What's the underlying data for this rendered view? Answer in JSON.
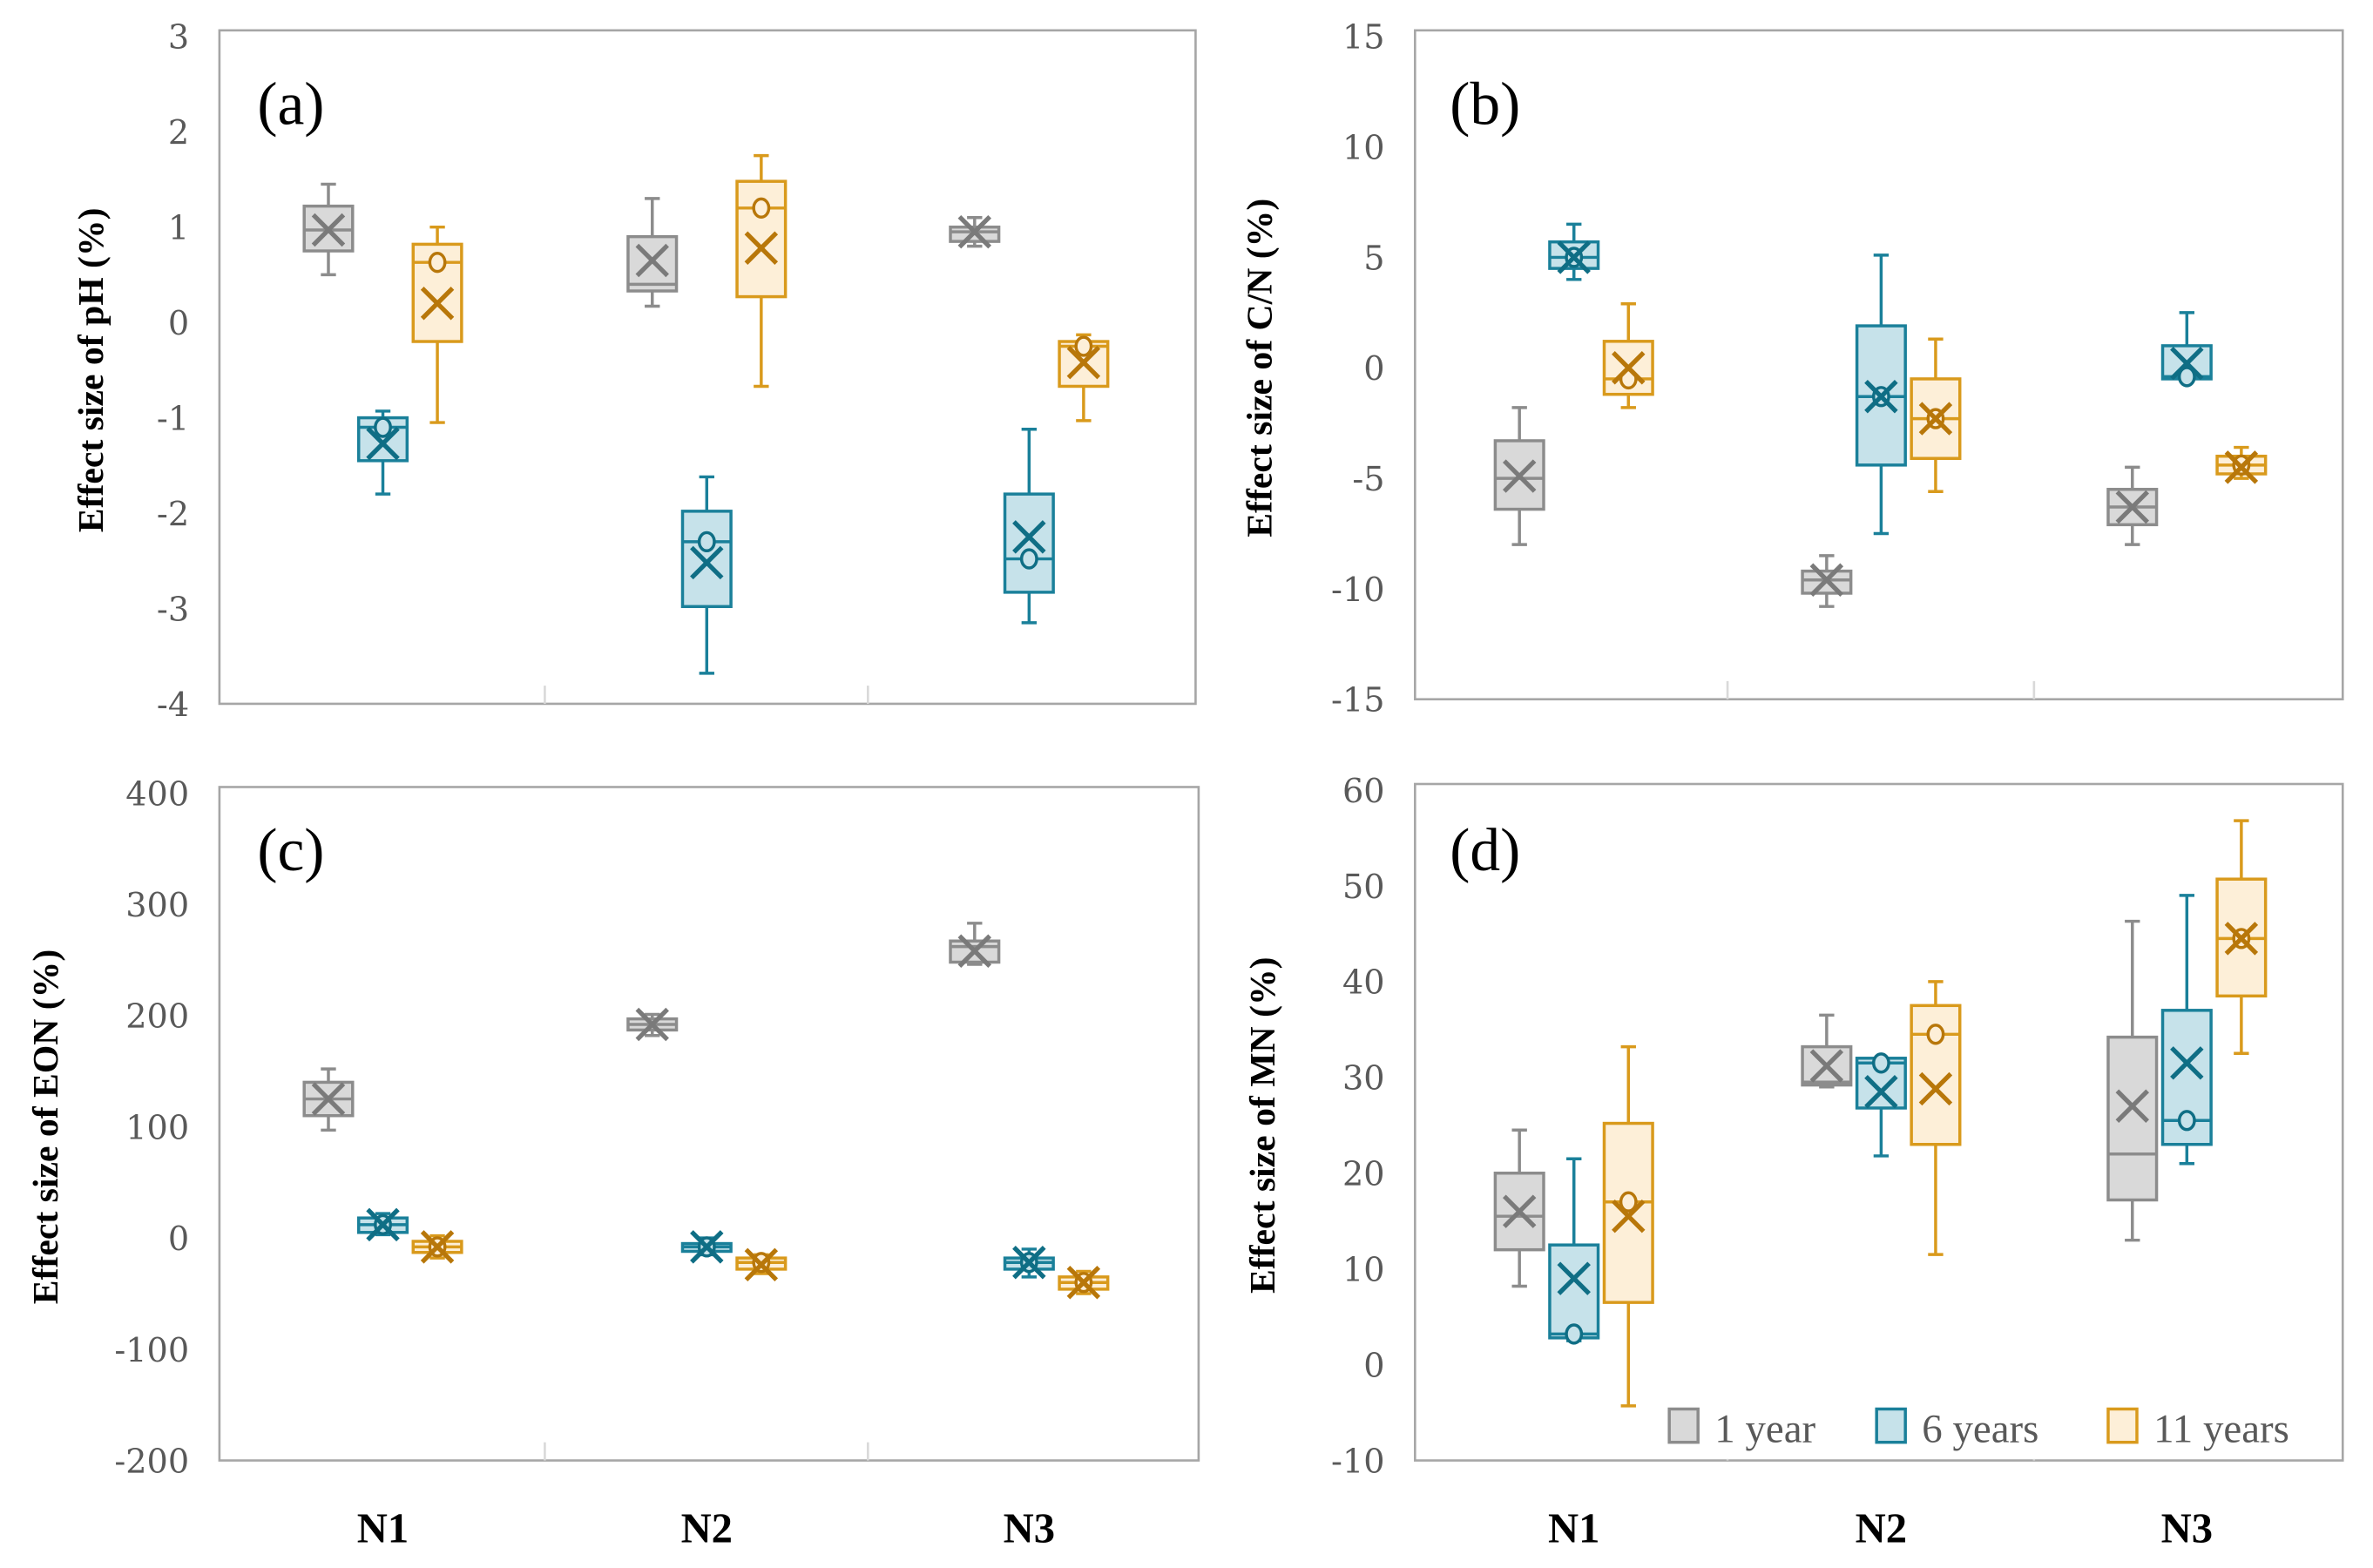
{
  "chart_data": [
    {
      "type": "box",
      "panel_label": "(a)",
      "ylabel": "Effect size of pH (%)",
      "ylim": [
        -4,
        3
      ],
      "yticks": [
        "-4",
        "-3",
        "-2",
        "-1",
        "0",
        "1",
        "2",
        "3"
      ],
      "categories": [
        "N1",
        "N2",
        "N3"
      ],
      "series": [
        {
          "name": "1 year",
          "boxes": [
            {
              "min": 0.5,
              "q1": 0.75,
              "median": 0.97,
              "q3": 1.22,
              "max": 1.45,
              "mean": 0.97
            },
            {
              "min": 0.17,
              "q1": 0.33,
              "median": 0.4,
              "q3": 0.9,
              "max": 1.3,
              "mean": 0.65
            },
            {
              "min": 0.8,
              "q1": 0.85,
              "median": 0.95,
              "q3": 1.0,
              "max": 1.1,
              "mean": 0.95
            }
          ]
        },
        {
          "name": "6 years",
          "boxes": [
            {
              "min": -1.8,
              "q1": -1.45,
              "median": -1.1,
              "q3": -1.0,
              "max": -0.93,
              "mean": -1.27
            },
            {
              "min": -3.68,
              "q1": -2.98,
              "median": -2.3,
              "q3": -1.98,
              "max": -1.62,
              "mean": -2.52
            },
            {
              "min": -3.15,
              "q1": -2.83,
              "median": -2.48,
              "q3": -1.8,
              "max": -1.12,
              "mean": -2.25
            }
          ]
        },
        {
          "name": "11 years",
          "boxes": [
            {
              "min": -1.05,
              "q1": -0.2,
              "median": 0.63,
              "q3": 0.82,
              "max": 1.0,
              "mean": 0.2
            },
            {
              "min": -0.67,
              "q1": 0.27,
              "median": 1.2,
              "q3": 1.48,
              "max": 1.75,
              "mean": 0.78
            },
            {
              "min": -1.03,
              "q1": -0.67,
              "median": -0.25,
              "q3": -0.2,
              "max": -0.13,
              "mean": -0.42
            }
          ]
        }
      ]
    },
    {
      "type": "box",
      "panel_label": "(b)",
      "ylabel": "Effect size of C/N (%)",
      "ylim": [
        -15,
        15
      ],
      "yticks": [
        "-15",
        "-10",
        "-5",
        "0",
        "5",
        "10",
        "15"
      ],
      "categories": [
        "N1",
        "N2",
        "N3"
      ],
      "series": [
        {
          "name": "1 year",
          "boxes": [
            {
              "min": -8,
              "q1": -6.4,
              "median": -5,
              "q3": -3.3,
              "max": -1.8,
              "mean": -4.9
            },
            {
              "min": -10.8,
              "q1": -10.2,
              "median": -9.6,
              "q3": -9.2,
              "max": -8.5,
              "mean": -9.6
            },
            {
              "min": -8,
              "q1": -7.1,
              "median": -6.3,
              "q3": -5.5,
              "max": -4.5,
              "mean": -6.3
            }
          ]
        },
        {
          "name": "6 years",
          "boxes": [
            {
              "min": 4,
              "q1": 4.5,
              "median": 5,
              "q3": 5.7,
              "max": 6.5,
              "mean": 5
            },
            {
              "min": -7.5,
              "q1": -4.4,
              "median": -1.3,
              "q3": 1.9,
              "max": 5.1,
              "mean": -1.3
            },
            {
              "min": -0.6,
              "q1": -0.5,
              "median": -0.4,
              "q3": 1.0,
              "max": 2.5,
              "mean": 0.2
            }
          ]
        },
        {
          "name": "11 years",
          "boxes": [
            {
              "min": -1.8,
              "q1": -1.2,
              "median": -0.5,
              "q3": 1.2,
              "max": 2.9,
              "mean": 0
            },
            {
              "min": -5.6,
              "q1": -4.1,
              "median": -2.3,
              "q3": -0.5,
              "max": 1.3,
              "mean": -2.3
            },
            {
              "min": -5,
              "q1": -4.8,
              "median": -4.4,
              "q3": -4,
              "max": -3.6,
              "mean": -4.5
            }
          ]
        }
      ]
    },
    {
      "type": "box",
      "panel_label": "(c)",
      "ylabel": "Effect size of EON (%)",
      "ylim": [
        -200,
        400
      ],
      "yticks": [
        "-200",
        "-100",
        "0",
        "100",
        "200",
        "300",
        "400"
      ],
      "categories": [
        "N1",
        "N2",
        "N3"
      ],
      "series": [
        {
          "name": "1 year",
          "boxes": [
            {
              "min": 97,
              "q1": 110,
              "median": 125,
              "q3": 140,
              "max": 152,
              "mean": 125
            },
            {
              "min": 182,
              "q1": 187,
              "median": 192,
              "q3": 197,
              "max": 201,
              "mean": 192
            },
            {
              "min": 246,
              "q1": 248,
              "median": 262,
              "q3": 267,
              "max": 283,
              "mean": 258
            }
          ]
        },
        {
          "name": "6 years",
          "boxes": [
            {
              "min": 3,
              "q1": 5,
              "median": 12,
              "q3": 18,
              "max": 22,
              "mean": 12
            },
            {
              "min": -15,
              "q1": -12,
              "median": -8,
              "q3": -5,
              "max": 0,
              "mean": -8
            },
            {
              "min": -35,
              "q1": -28,
              "median": -22,
              "q3": -18,
              "max": -10,
              "mean": -22
            }
          ]
        },
        {
          "name": "11 years",
          "boxes": [
            {
              "min": -18,
              "q1": -13,
              "median": -8,
              "q3": -3,
              "max": 2,
              "mean": -8
            },
            {
              "min": -32,
              "q1": -28,
              "median": -22,
              "q3": -18,
              "max": -15,
              "mean": -24
            },
            {
              "min": -50,
              "q1": -46,
              "median": -40,
              "q3": -35,
              "max": -30,
              "mean": -40
            }
          ]
        }
      ]
    },
    {
      "type": "box",
      "panel_label": "(d)",
      "ylabel": "Effect size of MN (%)",
      "ylim": [
        -10,
        60
      ],
      "yticks": [
        "-10",
        "0",
        "10",
        "20",
        "30",
        "40",
        "50",
        "60"
      ],
      "categories": [
        "N1",
        "N2",
        "N3"
      ],
      "legend": [
        "1 year",
        "6 years",
        "11 years"
      ],
      "legend_position": "bottom-right",
      "series": [
        {
          "name": "1 year",
          "boxes": [
            {
              "min": 8.2,
              "q1": 12,
              "median": 15.5,
              "q3": 20,
              "max": 24.5,
              "mean": 16
            },
            {
              "min": 29,
              "q1": 29.2,
              "median": 29.5,
              "q3": 33.2,
              "max": 36.5,
              "mean": 31.2
            },
            {
              "min": 13,
              "q1": 17.2,
              "median": 22,
              "q3": 34.2,
              "max": 46.3,
              "mean": 27
            }
          ]
        },
        {
          "name": "6 years",
          "boxes": [
            {
              "min": 2.5,
              "q1": 2.8,
              "median": 3.2,
              "q3": 12.5,
              "max": 21.5,
              "mean": 9
            },
            {
              "min": 21.8,
              "q1": 26.8,
              "median": 31.5,
              "q3": 32,
              "max": 32,
              "mean": 28.5
            },
            {
              "min": 21,
              "q1": 23,
              "median": 25.5,
              "q3": 37,
              "max": 49,
              "mean": 31.5
            }
          ]
        },
        {
          "name": "11 years",
          "boxes": [
            {
              "min": -4.3,
              "q1": 6.5,
              "median": 17,
              "q3": 25.2,
              "max": 33.2,
              "mean": 15.5
            },
            {
              "min": 11.5,
              "q1": 23,
              "median": 34.5,
              "q3": 37.5,
              "max": 40,
              "mean": 28.8
            },
            {
              "min": 32.5,
              "q1": 38.5,
              "median": 44.5,
              "q3": 50.7,
              "max": 56.8,
              "mean": 44.5
            }
          ]
        }
      ]
    }
  ],
  "colors": {
    "1 year": {
      "fill": "#d9d9d9",
      "stroke": "#8c8c8c",
      "mark": "#7a7a7a"
    },
    "6 years": {
      "fill": "#c6e2ea",
      "stroke": "#1a809a",
      "mark": "#0f6e85"
    },
    "11 years": {
      "fill": "#fdefd8",
      "stroke": "#d99a1c",
      "mark": "#b8770a"
    }
  }
}
